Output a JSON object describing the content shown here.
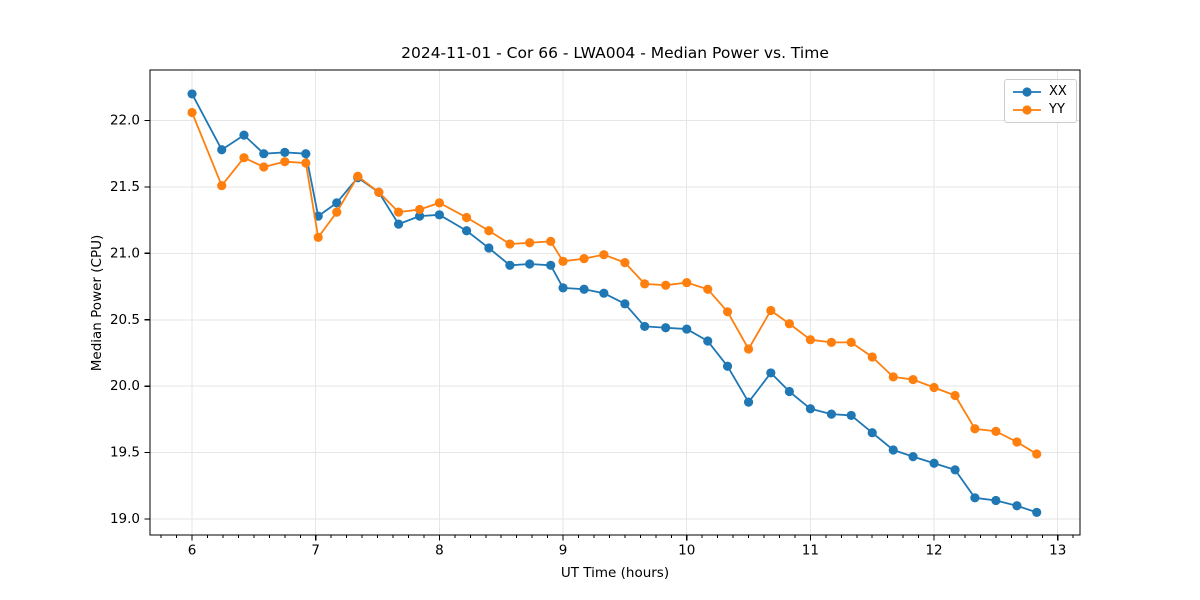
{
  "chart_data": {
    "type": "line",
    "title": "2024-11-01 - Cor 66 - LWA004 - Median Power vs. Time",
    "xlabel": "UT Time (hours)",
    "ylabel": "Median Power (CPU)",
    "xlim": [
      5.66,
      13.18
    ],
    "ylim": [
      18.88,
      22.38
    ],
    "xticks": [
      6,
      7,
      8,
      9,
      10,
      11,
      12,
      13
    ],
    "yticks": [
      19.0,
      19.5,
      20.0,
      20.5,
      21.0,
      21.5,
      22.0
    ],
    "x_minor_tick_step": 0.125,
    "grid": true,
    "legend": {
      "position": "upper right",
      "entries": [
        "XX",
        "YY"
      ]
    },
    "x": [
      6.0,
      6.24,
      6.42,
      6.58,
      6.75,
      6.92,
      7.02,
      7.17,
      7.34,
      7.51,
      7.67,
      7.84,
      8.0,
      8.22,
      8.4,
      8.57,
      8.73,
      8.9,
      9.0,
      9.17,
      9.33,
      9.5,
      9.66,
      9.83,
      10.0,
      10.17,
      10.33,
      10.5,
      10.68,
      10.83,
      11.0,
      11.17,
      11.33,
      11.5,
      11.67,
      11.83,
      12.0,
      12.17,
      12.33,
      12.5,
      12.67,
      12.83
    ],
    "series": [
      {
        "name": "XX",
        "color": "#1f77b4",
        "marker": "circle",
        "values": [
          22.2,
          21.78,
          21.89,
          21.75,
          21.76,
          21.75,
          21.28,
          21.38,
          21.57,
          21.46,
          21.22,
          21.28,
          21.29,
          21.17,
          21.04,
          20.91,
          20.92,
          20.91,
          20.74,
          20.73,
          20.7,
          20.62,
          20.45,
          20.44,
          20.43,
          20.34,
          20.15,
          19.88,
          20.1,
          19.96,
          19.83,
          19.79,
          19.78,
          19.65,
          19.52,
          19.47,
          19.42,
          19.37,
          19.16,
          19.14,
          19.1,
          19.05
        ]
      },
      {
        "name": "YY",
        "color": "#ff7f0e",
        "marker": "circle",
        "values": [
          22.06,
          21.51,
          21.72,
          21.65,
          21.69,
          21.68,
          21.12,
          21.31,
          21.58,
          21.46,
          21.31,
          21.33,
          21.38,
          21.27,
          21.17,
          21.07,
          21.08,
          21.09,
          20.94,
          20.96,
          20.99,
          20.93,
          20.77,
          20.76,
          20.78,
          20.73,
          20.56,
          20.28,
          20.57,
          20.47,
          20.35,
          20.33,
          20.33,
          20.22,
          20.07,
          20.05,
          19.99,
          19.93,
          19.68,
          19.66,
          19.58,
          19.49
        ]
      }
    ],
    "style": {
      "grid_color": "#e6e6e6",
      "spine_color": "#000000",
      "tick_color": "#000000",
      "background": "#ffffff",
      "line_width": 1.8,
      "marker_radius": 4.6,
      "tick_label_size": 13.5
    }
  }
}
